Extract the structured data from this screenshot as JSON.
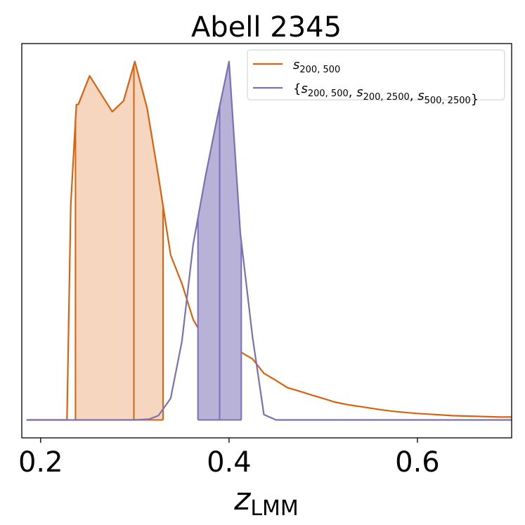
{
  "chart_data": {
    "type": "line",
    "title": "Abell 2345",
    "xlabel": "z",
    "xlabel_sub": "LMM",
    "ylabel": "",
    "xlim": [
      0.18,
      0.7
    ],
    "ylim": [
      -0.05,
      1.05
    ],
    "xticks": [
      {
        "value": 0.2,
        "label": "0.2"
      },
      {
        "value": 0.4,
        "label": "0.4"
      },
      {
        "value": 0.6,
        "label": "0.6"
      }
    ],
    "grid": false,
    "legend_position": "top-right",
    "series": [
      {
        "name_parts": [
          {
            "t": "s",
            "italic": true
          },
          {
            "t": "200, 500",
            "sub": true
          }
        ],
        "color": "#d9620f",
        "fill": "#f6d6bf",
        "x": [
          0.185,
          0.228,
          0.232,
          0.238,
          0.24,
          0.252,
          0.264,
          0.276,
          0.288,
          0.3,
          0.313,
          0.325,
          0.338,
          0.35,
          0.362,
          0.375,
          0.388,
          0.4,
          0.412,
          0.425,
          0.437,
          0.45,
          0.462,
          0.475,
          0.487,
          0.5,
          0.512,
          0.525,
          0.537,
          0.55,
          0.562,
          0.575,
          0.587,
          0.6,
          0.612,
          0.625,
          0.637,
          0.65,
          0.662,
          0.675,
          0.687,
          0.7
        ],
        "y": [
          0.0,
          0.0,
          0.6,
          0.88,
          0.88,
          0.96,
          0.91,
          0.86,
          0.89,
          1.0,
          0.87,
          0.68,
          0.46,
          0.38,
          0.28,
          0.22,
          0.19,
          0.195,
          0.19,
          0.17,
          0.13,
          0.11,
          0.09,
          0.08,
          0.07,
          0.06,
          0.05,
          0.043,
          0.038,
          0.033,
          0.028,
          0.024,
          0.021,
          0.018,
          0.016,
          0.014,
          0.012,
          0.011,
          0.01,
          0.009,
          0.008,
          0.008
        ],
        "shade_range": [
          0.237,
          0.33
        ],
        "median": 0.299
      },
      {
        "name_parts": [
          {
            "t": "{",
            "italic": false
          },
          {
            "t": "s",
            "italic": true
          },
          {
            "t": "200, 500",
            "sub": true
          },
          {
            "t": ", ",
            "italic": false
          },
          {
            "t": "s",
            "italic": true
          },
          {
            "t": "200, 2500",
            "sub": true
          },
          {
            "t": ", ",
            "italic": false
          },
          {
            "t": "s",
            "italic": true
          },
          {
            "t": "500, 2500",
            "sub": true
          },
          {
            "t": "}",
            "italic": false
          }
        ],
        "color": "#7b70b5",
        "fill": "#b8b2d9",
        "x": [
          0.185,
          0.3,
          0.315,
          0.325,
          0.338,
          0.35,
          0.362,
          0.375,
          0.388,
          0.4,
          0.412,
          0.425,
          0.437,
          0.45,
          0.462,
          0.475,
          0.5,
          0.55,
          0.6,
          0.65,
          0.7
        ],
        "y": [
          0.0,
          0.0,
          0.002,
          0.012,
          0.06,
          0.22,
          0.49,
          0.68,
          0.85,
          1.0,
          0.52,
          0.23,
          0.015,
          0.0,
          0.0,
          0.0,
          0.0,
          0.0,
          0.0,
          0.0,
          0.0
        ],
        "shade_range": [
          0.367,
          0.413
        ],
        "median": 0.39
      }
    ]
  }
}
